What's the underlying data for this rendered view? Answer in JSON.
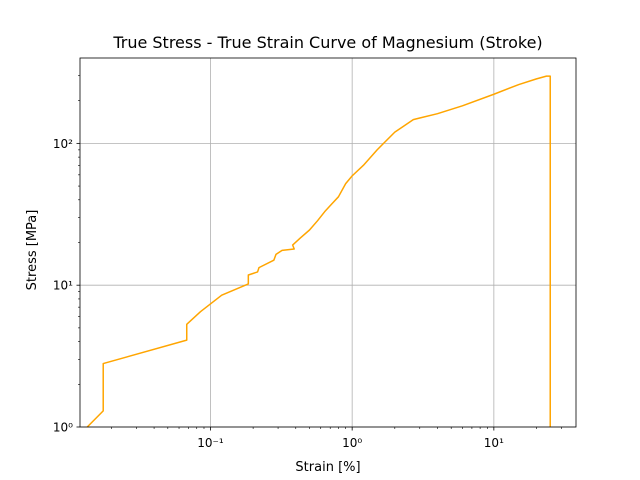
{
  "chart_data": {
    "type": "line",
    "title": "True Stress - True Strain Curve of Magnesium (Stroke)",
    "xlabel": "Strain [%]",
    "ylabel": "Stress [MPa]",
    "xscale": "log",
    "yscale": "log",
    "xlim": [
      0.012,
      38
    ],
    "ylim": [
      1,
      400
    ],
    "grid": true,
    "series": [
      {
        "color": "#FFA500",
        "points": [
          [
            0.0135,
            1.0
          ],
          [
            0.0175,
            1.3
          ],
          [
            0.0175,
            2.8
          ],
          [
            0.068,
            4.1
          ],
          [
            0.068,
            5.3
          ],
          [
            0.085,
            6.5
          ],
          [
            0.12,
            8.5
          ],
          [
            0.185,
            10.2
          ],
          [
            0.185,
            11.8
          ],
          [
            0.215,
            12.4
          ],
          [
            0.22,
            13.3
          ],
          [
            0.28,
            15.0
          ],
          [
            0.29,
            16.5
          ],
          [
            0.32,
            17.6
          ],
          [
            0.39,
            18.0
          ],
          [
            0.38,
            19.2
          ],
          [
            0.43,
            21.5
          ],
          [
            0.5,
            24.5
          ],
          [
            0.57,
            28.5
          ],
          [
            0.64,
            33.0
          ],
          [
            0.72,
            37.5
          ],
          [
            0.8,
            42.0
          ],
          [
            0.9,
            52.0
          ],
          [
            1.0,
            59.0
          ],
          [
            1.2,
            70.0
          ],
          [
            1.5,
            90.0
          ],
          [
            2.0,
            120.0
          ],
          [
            2.7,
            147.0
          ],
          [
            3.0,
            151.0
          ],
          [
            4.0,
            162.0
          ],
          [
            6.0,
            184.0
          ],
          [
            10.0,
            222.0
          ],
          [
            15.0,
            260.0
          ],
          [
            20.0,
            285.0
          ],
          [
            23.5,
            298.0
          ],
          [
            25.0,
            298.0
          ],
          [
            25.0,
            1.0
          ]
        ]
      }
    ],
    "ticks": {
      "x": [
        {
          "value": 0.1,
          "label": "10⁻¹"
        },
        {
          "value": 1,
          "label": "10⁰"
        },
        {
          "value": 10,
          "label": "10¹"
        }
      ],
      "y": [
        {
          "value": 1,
          "label": "10⁰"
        },
        {
          "value": 10,
          "label": "10¹"
        },
        {
          "value": 100,
          "label": "10²"
        }
      ]
    }
  }
}
